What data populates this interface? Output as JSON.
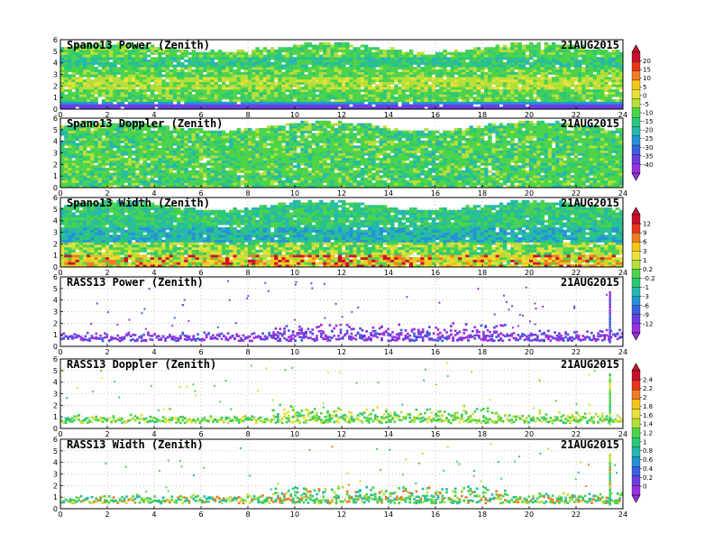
{
  "chart_data": [
    {
      "type": "heatmap",
      "title": "Spano13 Power (Zenith)",
      "date": "21AUG2015",
      "x_ticks": [
        "0",
        "2",
        "4",
        "6",
        "8",
        "10",
        "12",
        "14",
        "16",
        "18",
        "20",
        "22",
        "24"
      ],
      "y_ticks": [
        "0",
        "1",
        "2",
        "3",
        "4",
        "5",
        "6"
      ],
      "xlim": [
        0,
        24
      ],
      "ylim": [
        0,
        6
      ],
      "density": "full",
      "value_range": [
        -40,
        20
      ],
      "colorbar": 0
    },
    {
      "type": "heatmap",
      "title": "Spano13 Doppler (Zenith)",
      "date": "21AUG2015",
      "x_ticks": [
        "0",
        "2",
        "4",
        "6",
        "8",
        "10",
        "12",
        "14",
        "16",
        "18",
        "20",
        "22",
        "24"
      ],
      "y_ticks": [
        "0",
        "1",
        "2",
        "3",
        "4",
        "5",
        "6"
      ],
      "xlim": [
        0,
        24
      ],
      "ylim": [
        0,
        6
      ],
      "density": "full",
      "colorbar": 0
    },
    {
      "type": "heatmap",
      "title": "Spano13 Width (Zenith)",
      "date": "21AUG2015",
      "x_ticks": [
        "0",
        "2",
        "4",
        "6",
        "8",
        "10",
        "12",
        "14",
        "16",
        "18",
        "20",
        "22",
        "24"
      ],
      "y_ticks": [
        "0",
        "1",
        "2",
        "3",
        "4",
        "5",
        "6"
      ],
      "xlim": [
        0,
        24
      ],
      "ylim": [
        0,
        6
      ],
      "density": "full",
      "colorbar": 1
    },
    {
      "type": "heatmap",
      "title": "RASS13 Power (Zenith)",
      "date": "21AUG2015",
      "x_ticks": [
        "0",
        "2",
        "4",
        "6",
        "8",
        "10",
        "12",
        "14",
        "16",
        "18",
        "20",
        "22",
        "24"
      ],
      "y_ticks": [
        "0",
        "1",
        "2",
        "3",
        "4",
        "5",
        "6"
      ],
      "xlim": [
        0,
        24
      ],
      "ylim": [
        0,
        6
      ],
      "density": "sparse",
      "colorbar": 1
    },
    {
      "type": "heatmap",
      "title": "RASS13 Doppler (Zenith)",
      "date": "21AUG2015",
      "x_ticks": [
        "0",
        "2",
        "4",
        "6",
        "8",
        "10",
        "12",
        "14",
        "16",
        "18",
        "20",
        "22",
        "24"
      ],
      "y_ticks": [
        "0",
        "1",
        "2",
        "3",
        "4",
        "5",
        "6"
      ],
      "xlim": [
        0,
        24
      ],
      "ylim": [
        0,
        6
      ],
      "density": "sparse",
      "colorbar": 2
    },
    {
      "type": "heatmap",
      "title": "RASS13 Width (Zenith)",
      "date": "21AUG2015",
      "x_ticks": [
        "0",
        "2",
        "4",
        "6",
        "8",
        "10",
        "12",
        "14",
        "16",
        "18",
        "20",
        "22",
        "24"
      ],
      "y_ticks": [
        "0",
        "1",
        "2",
        "3",
        "4",
        "5",
        "6"
      ],
      "xlim": [
        0,
        24
      ],
      "ylim": [
        0,
        6
      ],
      "density": "sparse",
      "colorbar": 2
    }
  ],
  "colorbars": [
    {
      "labels": [
        "20",
        "15",
        "10",
        "5",
        "0",
        "-5",
        "-10",
        "-15",
        "-20",
        "-25",
        "-30",
        "-35",
        "-40"
      ],
      "colors": [
        "#c8102e",
        "#e8341c",
        "#f07d22",
        "#f5c518",
        "#e8e23a",
        "#b5e03a",
        "#4cd44a",
        "#2cc878",
        "#25b8b0",
        "#2592d6",
        "#3c5fe0",
        "#6a3ee0",
        "#9b30e0"
      ]
    },
    {
      "labels": [
        "12",
        "9",
        "6",
        "3",
        "1",
        "0.2",
        "-0.2",
        "-1",
        "-3",
        "-6",
        "-9",
        "-12"
      ],
      "colors": [
        "#c8102e",
        "#e8341c",
        "#f07d22",
        "#f5c518",
        "#e8e23a",
        "#b5e03a",
        "#4cd44a",
        "#2cc878",
        "#25b8b0",
        "#2592d6",
        "#3c5fe0",
        "#6a3ee0",
        "#9b30e0"
      ]
    },
    {
      "labels": [
        "2.4",
        "2.2",
        "2",
        "1.8",
        "1.6",
        "1.4",
        "1.2",
        "1",
        "0.8",
        "0.6",
        "0.4",
        "0.2",
        "0"
      ],
      "colors": [
        "#c8102e",
        "#e8341c",
        "#f07d22",
        "#f5c518",
        "#e8e23a",
        "#b5e03a",
        "#4cd44a",
        "#2cc878",
        "#25b8b0",
        "#2592d6",
        "#3c5fe0",
        "#6a3ee0",
        "#9b30e0"
      ]
    }
  ]
}
